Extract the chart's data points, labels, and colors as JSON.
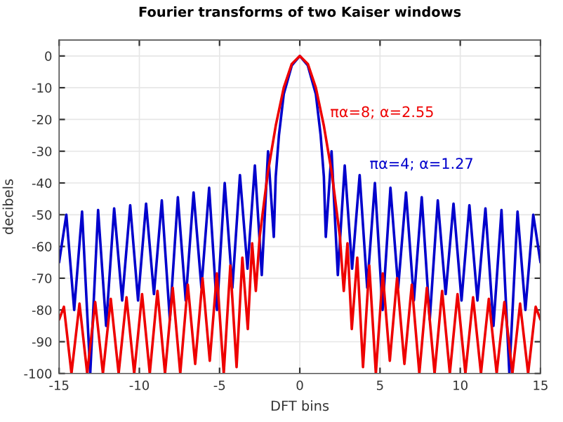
{
  "chart_data": {
    "type": "line",
    "title": "Fourier transforms of two Kaiser windows",
    "xlabel": "DFT bins",
    "ylabel": "decibels",
    "xlim": [
      -15,
      15
    ],
    "ylim": [
      -100,
      5
    ],
    "xticks": [
      -15,
      -10,
      -5,
      0,
      5,
      10,
      15
    ],
    "yticks": [
      -100,
      -90,
      -80,
      -70,
      -60,
      -50,
      -40,
      -30,
      -20,
      -10,
      0
    ],
    "grid": true,
    "series": [
      {
        "color": "#0000cc",
        "x": [
          -15,
          -14.55,
          -14.06,
          -13.57,
          -13.06,
          -12.57,
          -12.07,
          -11.57,
          -11.07,
          -10.57,
          -10.08,
          -9.58,
          -9.09,
          -8.6,
          -8.1,
          -7.6,
          -7.11,
          -6.62,
          -6.13,
          -5.65,
          -5.16,
          -4.68,
          -4.2,
          -3.73,
          -3.26,
          -2.8,
          -2.37,
          -1.98,
          -1.62,
          -1.5,
          -1.3,
          -1,
          -0.5,
          0,
          0.5,
          1,
          1.3,
          1.5,
          1.62,
          1.98,
          2.37,
          2.8,
          3.26,
          3.73,
          4.2,
          4.68,
          5.16,
          5.65,
          6.13,
          6.62,
          7.11,
          7.6,
          8.1,
          8.6,
          9.09,
          9.58,
          10.08,
          10.57,
          11.07,
          11.57,
          12.07,
          12.57,
          13.06,
          13.57,
          14.06,
          14.55,
          15
        ],
        "values": [
          -65,
          -50,
          -80,
          -49,
          -100,
          -48.5,
          -85,
          -48,
          -77,
          -47,
          -77,
          -46.5,
          -75,
          -45.5,
          -83,
          -44.5,
          -77,
          -43,
          -73,
          -41.5,
          -80,
          -40,
          -73,
          -37.5,
          -67,
          -34.5,
          -69,
          -30,
          -57,
          -38,
          -25,
          -12,
          -3,
          0,
          -3,
          -12,
          -25,
          -38,
          -57,
          -30,
          -69,
          -34.5,
          -67,
          -37.5,
          -73,
          -40,
          -80,
          -41.5,
          -73,
          -43,
          -77,
          -44.5,
          -83,
          -45.5,
          -75,
          -46.5,
          -77,
          -47,
          -77,
          -48,
          -85,
          -48.5,
          -100,
          -49,
          -80,
          -50,
          -65
        ]
      },
      {
        "color": "#ee0000",
        "x": [
          -15,
          -14.7,
          -14.23,
          -13.73,
          -13.25,
          -12.75,
          -12.27,
          -11.78,
          -11.29,
          -10.8,
          -10.32,
          -9.83,
          -9.35,
          -8.87,
          -8.4,
          -7.92,
          -7.45,
          -6.98,
          -6.52,
          -6.06,
          -5.61,
          -5.17,
          -4.74,
          -4.33,
          -3.94,
          -3.58,
          -3.24,
          -2.97,
          -2.74,
          -2.5,
          -2,
          -1.5,
          -1,
          -0.5,
          0,
          0.5,
          1,
          1.5,
          2,
          2.5,
          2.74,
          2.97,
          3.24,
          3.58,
          3.94,
          4.33,
          4.74,
          5.17,
          5.61,
          6.06,
          6.52,
          6.98,
          7.45,
          7.92,
          8.4,
          8.87,
          9.35,
          9.83,
          10.32,
          10.8,
          11.29,
          11.78,
          12.27,
          12.75,
          13.25,
          13.73,
          14.23,
          14.7,
          15
        ],
        "values": [
          -83,
          -79,
          -100,
          -78,
          -100,
          -77.5,
          -100,
          -76.5,
          -100,
          -76,
          -100,
          -75,
          -100,
          -74,
          -100,
          -73,
          -100,
          -72,
          -97,
          -70,
          -96,
          -68.5,
          -100,
          -66,
          -98,
          -63.5,
          -86,
          -59,
          -74,
          -57,
          -37,
          -22,
          -10,
          -2.5,
          0,
          -2.5,
          -10,
          -22,
          -37,
          -57,
          -74,
          -59,
          -86,
          -63.5,
          -98,
          -66,
          -100,
          -68.5,
          -96,
          -70,
          -97,
          -72,
          -100,
          -73,
          -100,
          -74,
          -100,
          -75,
          -100,
          -76,
          -100,
          -76.5,
          -100,
          -77.5,
          -100,
          -78,
          -100,
          -79,
          -83
        ]
      }
    ],
    "annotations": [
      "πα=4; α=1.27",
      "πα=8; α=2.55"
    ]
  }
}
